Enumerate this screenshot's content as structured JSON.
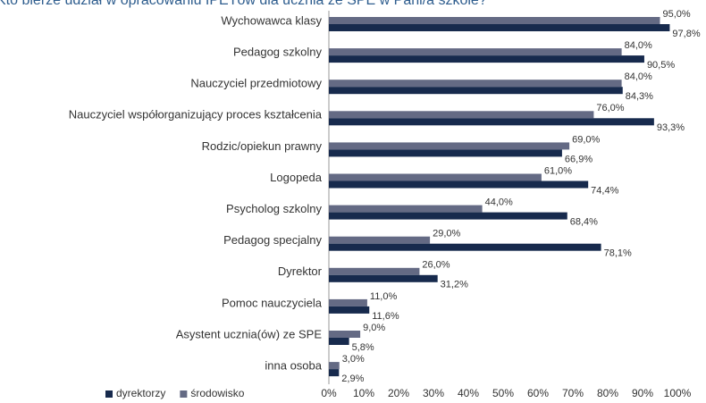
{
  "chart_data": {
    "type": "hbar",
    "title": "Kto bierze udział w opracowaniu IPETów dla ucznia ze SPE w Pani/a szkole?",
    "categories": [
      "Wychowawca klasy",
      "Pedagog szkolny",
      "Nauczyciel przedmiotowy",
      "Nauczyciel współorganizujący proces kształcenia",
      "Rodzic/opiekun prawny",
      "Logopeda",
      "Psycholog szkolny",
      "Pedagog specjalny",
      "Dyrektor",
      "Pomoc nauczyciela",
      "Asystent ucznia(ów) ze SPE",
      "inna osoba"
    ],
    "series": [
      {
        "name": "dyrektorzy",
        "color": "#172a4d",
        "values": [
          97.8,
          90.5,
          84.3,
          93.3,
          66.9,
          74.4,
          68.4,
          78.1,
          31.2,
          11.6,
          5.8,
          2.9
        ],
        "value_labels": [
          "97,8%",
          "90,5%",
          "84,3%",
          "93,3%",
          "66,9%",
          "74,4%",
          "68,4%",
          "78,1%",
          "31,2%",
          "11,6%",
          "5,8%",
          "2,9%"
        ]
      },
      {
        "name": "środowisko",
        "color": "#646a84",
        "values": [
          95.0,
          84.0,
          84.0,
          76.0,
          69.0,
          61.0,
          44.0,
          29.0,
          26.0,
          11.0,
          9.0,
          3.0
        ],
        "value_labels": [
          "95,0%",
          "84,0%",
          "84,0%",
          "76,0%",
          "69,0%",
          "61,0%",
          "44,0%",
          "29,0%",
          "26,0%",
          "11,0%",
          "9,0%",
          "3,0%"
        ]
      }
    ],
    "xlim": [
      0,
      100
    ],
    "xticks": [
      {
        "value": 0,
        "label": "0%"
      },
      {
        "value": 10,
        "label": "10%"
      },
      {
        "value": 20,
        "label": "20%"
      },
      {
        "value": 30,
        "label": "30%"
      },
      {
        "value": 40,
        "label": "40%"
      },
      {
        "value": 50,
        "label": "50%"
      },
      {
        "value": 60,
        "label": "60%"
      },
      {
        "value": 70,
        "label": "70%"
      },
      {
        "value": 80,
        "label": "80%"
      },
      {
        "value": 90,
        "label": "90%"
      },
      {
        "value": 100,
        "label": "100%"
      }
    ],
    "legend": "bottom-left"
  }
}
